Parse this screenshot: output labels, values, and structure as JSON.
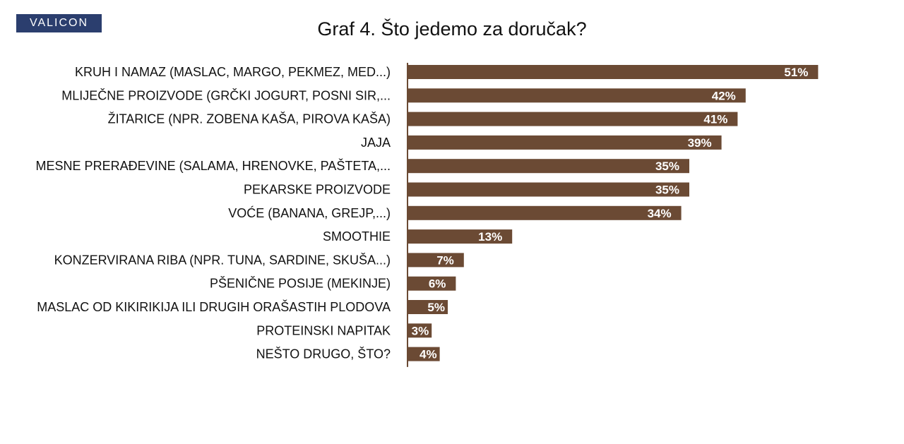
{
  "logo": {
    "text": "VALICON"
  },
  "chart_data": {
    "type": "bar",
    "orientation": "horizontal",
    "title": "Graf 4. Što jedemo za doručak?",
    "xlabel": "",
    "ylabel": "",
    "xlim": [
      0,
      55
    ],
    "grid": false,
    "legend": "none",
    "bar_color": "#6b4a34",
    "label_color": "#ffffff",
    "categories": [
      "KRUH I NAMAZ (MASLAC, MARGO, PEKMEZ, MED...)",
      "MLIJEČNE PROIZVODE (GRČKI JOGURT, POSNI SIR,...",
      "ŽITARICE (NPR. ZOBENA KAŠA, PIROVA KAŠA)",
      "JAJA",
      "MESNE PRERAĐEVINE (SALAMA, HRENOVKE, PAŠTETA,...",
      "PEKARSKE PROIZVODE",
      "VOĆE (BANANA, GREJP,...)",
      "SMOOTHIE",
      "KONZERVIRANA RIBA (NPR. TUNA, SARDINE, SKUŠA...)",
      "PŠENIČNE POSIJE (MEKINJE)",
      "MASLAC OD KIKIRIKIJA ILI DRUGIH ORAŠASTIH PLODOVA",
      "PROTEINSKI NAPITAK",
      "NEŠTO DRUGO, ŠTO?"
    ],
    "values": [
      51,
      42,
      41,
      39,
      35,
      35,
      34,
      13,
      7,
      6,
      5,
      3,
      4
    ],
    "data_labels": [
      "51%",
      "42%",
      "41%",
      "39%",
      "35%",
      "35%",
      "34%",
      "13%",
      "7%",
      "6%",
      "5%",
      "3%",
      "4%"
    ]
  }
}
